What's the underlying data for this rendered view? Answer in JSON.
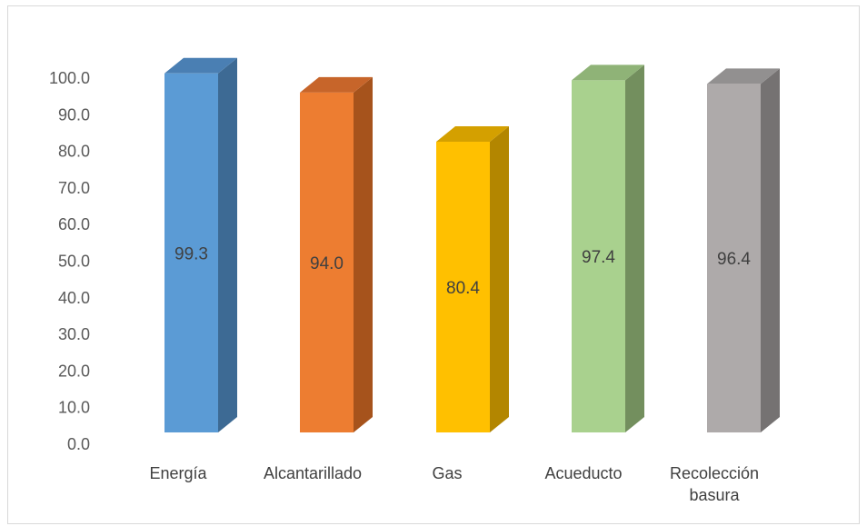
{
  "chart_data": {
    "type": "bar",
    "style": "3d-column",
    "categories": [
      "Energía",
      "Alcantarillado",
      "Gas",
      "Acueducto",
      "Recolección basura"
    ],
    "category_lines": [
      [
        "Energía"
      ],
      [
        "Alcantarillado"
      ],
      [
        "Gas"
      ],
      [
        "Acueducto"
      ],
      [
        "Recolección",
        "basura"
      ]
    ],
    "values": [
      99.3,
      94.0,
      80.4,
      97.4,
      96.4
    ],
    "value_labels": [
      "99.3",
      "94.0",
      "80.4",
      "97.4",
      "96.4"
    ],
    "colors": [
      "#5b9bd5",
      "#ed7d31",
      "#ffc000",
      "#a9d18e",
      "#aeaaaa"
    ],
    "side_colors": [
      "#3d6a94",
      "#a6531c",
      "#b38600",
      "#738f5e",
      "#757272"
    ],
    "top_colors": [
      "#4a7fb3",
      "#c7652a",
      "#d4a000",
      "#8fb377",
      "#929090"
    ],
    "yticks": [
      "0.0",
      "10.0",
      "20.0",
      "30.0",
      "40.0",
      "50.0",
      "60.0",
      "70.0",
      "80.0",
      "90.0",
      "100.0"
    ],
    "ylim": [
      0,
      100
    ],
    "grid": false,
    "legend": "none",
    "title": "",
    "xlabel": "",
    "ylabel": ""
  }
}
